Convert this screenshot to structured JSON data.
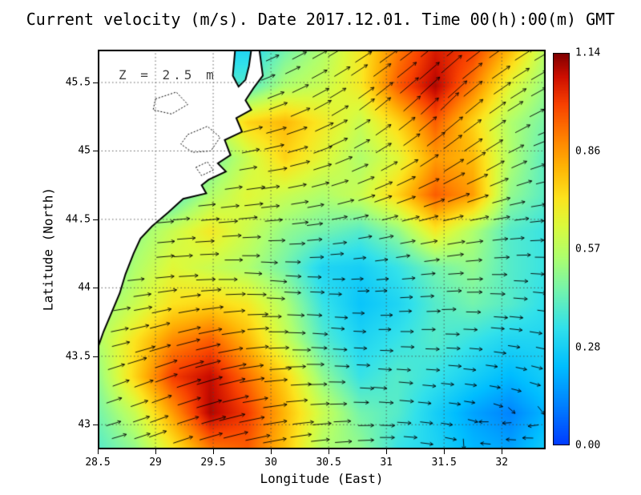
{
  "chart_data": {
    "type": "heatmap",
    "title": "Current velocity (m/s). Date 2017.12.01. Time 00(h):00(m) GMT",
    "xlabel": "Longitude (East)",
    "ylabel": "Latitude (North)",
    "annotation": "Z = 2.5 m",
    "units": "m/s",
    "x_range": [
      28.5,
      32.38
    ],
    "y_range": [
      42.82,
      45.74
    ],
    "x_ticks": [
      "28.5",
      "29",
      "29.5",
      "30",
      "30.5",
      "31",
      "31.5",
      "32"
    ],
    "y_ticks": [
      "43",
      "43.5",
      "44",
      "44.5",
      "45",
      "45.5"
    ],
    "grid": "dotted",
    "colorbar": {
      "min": 0,
      "max": 1.14,
      "tick_labels": [
        "1.14",
        "0.86",
        "0.57",
        "0.28",
        "0.00"
      ]
    },
    "colormap_stops": [
      [
        0.0,
        0,
        60,
        255
      ],
      [
        0.1,
        0,
        128,
        255
      ],
      [
        0.2,
        0,
        190,
        255
      ],
      [
        0.3,
        50,
        225,
        235
      ],
      [
        0.4,
        120,
        245,
        170
      ],
      [
        0.48,
        175,
        255,
        110
      ],
      [
        0.56,
        220,
        250,
        60
      ],
      [
        0.63,
        252,
        228,
        30
      ],
      [
        0.71,
        255,
        180,
        5
      ],
      [
        0.79,
        255,
        125,
        0
      ],
      [
        0.87,
        248,
        65,
        0
      ],
      [
        0.94,
        205,
        15,
        0
      ],
      [
        1.0,
        128,
        0,
        0
      ]
    ],
    "speed_grid": {
      "lon": [
        28.5,
        28.83,
        29.15,
        29.48,
        29.8,
        30.13,
        30.45,
        30.78,
        31.1,
        31.43,
        31.75,
        32.08,
        32.4
      ],
      "lat": [
        45.74,
        45.47,
        45.21,
        44.94,
        44.68,
        44.41,
        44.15,
        43.88,
        43.62,
        43.35,
        43.09,
        42.82
      ],
      "values": [
        [
          null,
          null,
          null,
          null,
          0.3,
          0.45,
          0.55,
          0.7,
          0.9,
          1.05,
          1.0,
          0.8,
          0.55
        ],
        [
          null,
          null,
          null,
          null,
          0.4,
          0.55,
          0.6,
          0.7,
          0.95,
          1.1,
          0.9,
          0.65,
          0.5
        ],
        [
          null,
          null,
          null,
          0.55,
          0.75,
          0.8,
          0.7,
          0.6,
          0.75,
          0.95,
          0.75,
          0.55,
          0.45
        ],
        [
          null,
          null,
          null,
          0.45,
          0.6,
          0.75,
          0.65,
          0.55,
          0.65,
          0.85,
          0.8,
          0.55,
          0.4
        ],
        [
          null,
          null,
          0.4,
          0.55,
          0.65,
          0.6,
          0.55,
          0.6,
          0.75,
          0.95,
          0.85,
          0.5,
          0.4
        ],
        [
          0.4,
          0.5,
          0.6,
          0.7,
          0.6,
          0.5,
          0.45,
          0.4,
          0.5,
          0.7,
          0.55,
          0.4,
          0.35
        ],
        [
          0.4,
          0.55,
          0.65,
          0.6,
          0.55,
          0.45,
          0.3,
          0.28,
          0.35,
          0.45,
          0.5,
          0.4,
          0.35
        ],
        [
          0.5,
          0.6,
          0.72,
          0.75,
          0.7,
          0.55,
          0.35,
          0.25,
          0.3,
          0.4,
          0.45,
          0.4,
          0.33
        ],
        [
          0.55,
          0.72,
          0.88,
          0.95,
          0.8,
          0.6,
          0.4,
          0.3,
          0.35,
          0.4,
          0.35,
          0.3,
          0.3
        ],
        [
          0.5,
          0.75,
          1.0,
          1.08,
          0.92,
          0.75,
          0.5,
          0.35,
          0.4,
          0.35,
          0.28,
          0.22,
          0.28
        ],
        [
          0.45,
          0.6,
          0.85,
          1.1,
          1.0,
          0.8,
          0.6,
          0.45,
          0.4,
          0.28,
          0.18,
          0.12,
          0.22
        ],
        [
          0.4,
          0.5,
          0.7,
          0.9,
          0.95,
          0.78,
          0.55,
          0.5,
          0.35,
          0.3,
          0.22,
          0.18,
          0.28
        ]
      ]
    },
    "vector_grid": {
      "lon": [
        28.5,
        29.0,
        29.5,
        30.0,
        30.5,
        31.0,
        31.5,
        32.0,
        32.4
      ],
      "lat": [
        45.7,
        45.3,
        44.9,
        44.5,
        44.1,
        43.7,
        43.3,
        42.9
      ],
      "angles_deg": [
        [
          15,
          15,
          10,
          25,
          30,
          35,
          40,
          35,
          30
        ],
        [
          10,
          10,
          15,
          20,
          30,
          40,
          45,
          35,
          25
        ],
        [
          5,
          5,
          10,
          10,
          20,
          30,
          35,
          30,
          15
        ],
        [
          0,
          5,
          5,
          5,
          10,
          15,
          15,
          10,
          5
        ],
        [
          5,
          5,
          0,
          -5,
          0,
          5,
          5,
          0,
          -5
        ],
        [
          10,
          15,
          10,
          0,
          -5,
          0,
          0,
          -5,
          -10
        ],
        [
          20,
          20,
          15,
          5,
          0,
          -5,
          -5,
          -10,
          -20
        ],
        [
          15,
          20,
          15,
          10,
          5,
          0,
          -10,
          175,
          180
        ]
      ]
    },
    "coastline": [
      [
        28.5,
        45.74
      ],
      [
        29.69,
        45.74
      ],
      [
        29.67,
        45.55
      ],
      [
        29.72,
        45.47
      ],
      [
        29.78,
        45.52
      ],
      [
        29.81,
        45.62
      ],
      [
        29.83,
        45.74
      ],
      [
        29.9,
        45.74
      ],
      [
        29.93,
        45.55
      ],
      [
        29.85,
        45.46
      ],
      [
        29.78,
        45.37
      ],
      [
        29.83,
        45.3
      ],
      [
        29.7,
        45.24
      ],
      [
        29.75,
        45.14
      ],
      [
        29.6,
        45.08
      ],
      [
        29.65,
        44.97
      ],
      [
        29.54,
        44.91
      ],
      [
        29.61,
        44.85
      ],
      [
        29.46,
        44.79
      ],
      [
        29.4,
        44.75
      ],
      [
        29.44,
        44.69
      ],
      [
        29.24,
        44.65
      ],
      [
        29.11,
        44.55
      ],
      [
        28.97,
        44.45
      ],
      [
        28.87,
        44.36
      ],
      [
        28.81,
        44.25
      ],
      [
        28.74,
        44.1
      ],
      [
        28.69,
        43.96
      ],
      [
        28.61,
        43.8
      ],
      [
        28.55,
        43.68
      ],
      [
        28.5,
        43.56
      ]
    ],
    "lakes": [
      [
        [
          29.28,
          45.12
        ],
        [
          29.45,
          45.18
        ],
        [
          29.56,
          45.1
        ],
        [
          29.48,
          45.0
        ],
        [
          29.32,
          44.99
        ],
        [
          29.22,
          45.05
        ]
      ],
      [
        [
          29.0,
          45.38
        ],
        [
          29.18,
          45.43
        ],
        [
          29.28,
          45.34
        ],
        [
          29.14,
          45.27
        ],
        [
          28.98,
          45.3
        ]
      ],
      [
        [
          29.35,
          44.88
        ],
        [
          29.45,
          44.92
        ],
        [
          29.5,
          44.86
        ],
        [
          29.4,
          44.82
        ]
      ]
    ]
  }
}
